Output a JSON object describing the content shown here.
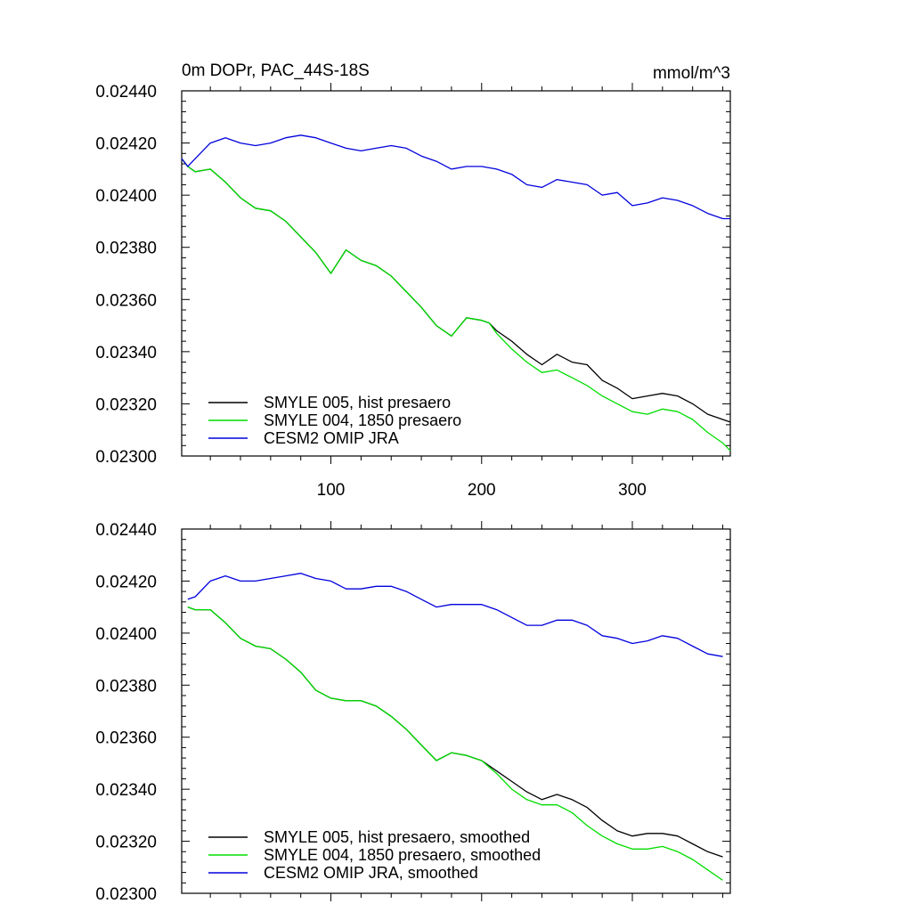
{
  "chart_data": [
    {
      "type": "line",
      "title": "0m DOPr, PAC_44S-18S",
      "units": "mmol/m^3",
      "xlim": [
        1,
        365
      ],
      "ylim": [
        0.023,
        0.0244
      ],
      "xticks": [
        100,
        200,
        300
      ],
      "xtick_labels": [
        "100",
        "200",
        "300"
      ],
      "yticks": [
        0.0244,
        0.0242,
        0.024,
        0.0238,
        0.0236,
        0.0234,
        0.0232,
        0.023
      ],
      "ytick_labels": [
        "0.02440",
        "0.02420",
        "0.02400",
        "0.02380",
        "0.02360",
        "0.02340",
        "0.02320",
        "0.02300"
      ],
      "legend_position": "bottom-left",
      "series": [
        {
          "name": "SMYLE 005, hist presaero",
          "color": "#000000",
          "x": [
            1,
            5,
            10,
            20,
            30,
            40,
            50,
            60,
            70,
            80,
            90,
            100,
            110,
            120,
            130,
            140,
            150,
            160,
            170,
            180,
            190,
            200,
            205,
            210,
            220,
            230,
            240,
            250,
            260,
            270,
            280,
            290,
            300,
            310,
            320,
            330,
            340,
            350,
            360,
            365
          ],
          "y": [
            0.02414,
            0.02411,
            0.02409,
            0.0241,
            0.02405,
            0.02399,
            0.02395,
            0.02394,
            0.0239,
            0.02384,
            0.02378,
            0.0237,
            0.02379,
            0.02375,
            0.02373,
            0.02369,
            0.02363,
            0.02357,
            0.0235,
            0.02346,
            0.02353,
            0.02352,
            0.02351,
            0.02348,
            0.02344,
            0.02339,
            0.02335,
            0.02339,
            0.02336,
            0.02335,
            0.02329,
            0.02326,
            0.02322,
            0.02323,
            0.02324,
            0.02323,
            0.0232,
            0.02316,
            0.02314,
            0.02313
          ]
        },
        {
          "name": "SMYLE 004, 1850 presaero",
          "color": "#00dd00",
          "x": [
            1,
            5,
            10,
            20,
            30,
            40,
            50,
            60,
            70,
            80,
            90,
            100,
            110,
            120,
            130,
            140,
            150,
            160,
            170,
            180,
            190,
            200,
            205,
            210,
            220,
            230,
            240,
            250,
            260,
            270,
            280,
            290,
            300,
            310,
            320,
            330,
            340,
            350,
            360,
            365
          ],
          "y": [
            0.02414,
            0.02411,
            0.02409,
            0.0241,
            0.02405,
            0.02399,
            0.02395,
            0.02394,
            0.0239,
            0.02384,
            0.02378,
            0.0237,
            0.02379,
            0.02375,
            0.02373,
            0.02369,
            0.02363,
            0.02357,
            0.0235,
            0.02346,
            0.02353,
            0.02352,
            0.02351,
            0.02347,
            0.02341,
            0.02336,
            0.02332,
            0.02333,
            0.0233,
            0.02327,
            0.02323,
            0.0232,
            0.02317,
            0.02316,
            0.02318,
            0.02317,
            0.02314,
            0.02309,
            0.02305,
            0.02302
          ]
        },
        {
          "name": "CESM2 OMIP JRA",
          "color": "#0000dd",
          "x": [
            1,
            5,
            10,
            20,
            30,
            40,
            50,
            60,
            70,
            80,
            90,
            100,
            110,
            120,
            130,
            140,
            150,
            160,
            170,
            180,
            190,
            200,
            210,
            220,
            230,
            240,
            250,
            260,
            270,
            280,
            290,
            300,
            310,
            320,
            330,
            340,
            350,
            360,
            365
          ],
          "y": [
            0.02414,
            0.02411,
            0.02414,
            0.0242,
            0.02422,
            0.0242,
            0.02419,
            0.0242,
            0.02422,
            0.02423,
            0.02422,
            0.0242,
            0.02418,
            0.02417,
            0.02418,
            0.02419,
            0.02418,
            0.02415,
            0.02413,
            0.0241,
            0.02411,
            0.02411,
            0.0241,
            0.02408,
            0.02404,
            0.02403,
            0.02406,
            0.02405,
            0.02404,
            0.024,
            0.02401,
            0.02396,
            0.02397,
            0.02399,
            0.02398,
            0.02396,
            0.02393,
            0.02391,
            0.02391
          ]
        }
      ]
    },
    {
      "type": "line",
      "xlim": [
        1,
        365
      ],
      "ylim": [
        0.023,
        0.0244
      ],
      "xticks": [
        100,
        200,
        300
      ],
      "yticks": [
        0.0244,
        0.0242,
        0.024,
        0.0238,
        0.0236,
        0.0234,
        0.0232,
        0.023
      ],
      "ytick_labels": [
        "0.02440",
        "0.02420",
        "0.02400",
        "0.02380",
        "0.02360",
        "0.02340",
        "0.02320",
        "0.02300"
      ],
      "legend_position": "bottom-left",
      "series": [
        {
          "name": "SMYLE 005, hist presaero, smoothed",
          "color": "#000000",
          "x": [
            5,
            10,
            20,
            30,
            40,
            50,
            60,
            70,
            80,
            90,
            100,
            110,
            120,
            130,
            140,
            150,
            160,
            170,
            180,
            190,
            200,
            210,
            220,
            230,
            240,
            250,
            260,
            270,
            280,
            290,
            300,
            310,
            320,
            330,
            340,
            350,
            360
          ],
          "y": [
            0.0241,
            0.02409,
            0.02409,
            0.02404,
            0.02398,
            0.02395,
            0.02394,
            0.0239,
            0.02385,
            0.02378,
            0.02375,
            0.02374,
            0.02374,
            0.02372,
            0.02368,
            0.02363,
            0.02357,
            0.02351,
            0.02354,
            0.02353,
            0.02351,
            0.02347,
            0.02343,
            0.02339,
            0.02336,
            0.02338,
            0.02336,
            0.02333,
            0.02328,
            0.02324,
            0.02322,
            0.02323,
            0.02323,
            0.02322,
            0.02319,
            0.02316,
            0.02314
          ]
        },
        {
          "name": "SMYLE 004, 1850 presaero, smoothed",
          "color": "#00dd00",
          "x": [
            5,
            10,
            20,
            30,
            40,
            50,
            60,
            70,
            80,
            90,
            100,
            110,
            120,
            130,
            140,
            150,
            160,
            170,
            180,
            190,
            200,
            210,
            220,
            230,
            240,
            250,
            260,
            270,
            280,
            290,
            300,
            310,
            320,
            330,
            340,
            350,
            360
          ],
          "y": [
            0.0241,
            0.02409,
            0.02409,
            0.02404,
            0.02398,
            0.02395,
            0.02394,
            0.0239,
            0.02385,
            0.02378,
            0.02375,
            0.02374,
            0.02374,
            0.02372,
            0.02368,
            0.02363,
            0.02357,
            0.02351,
            0.02354,
            0.02353,
            0.02351,
            0.02346,
            0.0234,
            0.02336,
            0.02334,
            0.02334,
            0.02331,
            0.02326,
            0.02322,
            0.02319,
            0.02317,
            0.02317,
            0.02318,
            0.02316,
            0.02313,
            0.02309,
            0.02305
          ]
        },
        {
          "name": "CESM2 OMIP JRA, smoothed",
          "color": "#0000dd",
          "x": [
            5,
            10,
            20,
            30,
            40,
            50,
            60,
            70,
            80,
            90,
            100,
            110,
            120,
            130,
            140,
            150,
            160,
            170,
            180,
            190,
            200,
            210,
            220,
            230,
            240,
            250,
            260,
            270,
            280,
            290,
            300,
            310,
            320,
            330,
            340,
            350,
            360
          ],
          "y": [
            0.02413,
            0.02414,
            0.0242,
            0.02422,
            0.0242,
            0.0242,
            0.02421,
            0.02422,
            0.02423,
            0.02421,
            0.0242,
            0.02417,
            0.02417,
            0.02418,
            0.02418,
            0.02416,
            0.02413,
            0.0241,
            0.02411,
            0.02411,
            0.02411,
            0.02409,
            0.02406,
            0.02403,
            0.02403,
            0.02405,
            0.02405,
            0.02403,
            0.02399,
            0.02398,
            0.02396,
            0.02397,
            0.02399,
            0.02398,
            0.02395,
            0.02392,
            0.02391
          ]
        }
      ]
    }
  ]
}
